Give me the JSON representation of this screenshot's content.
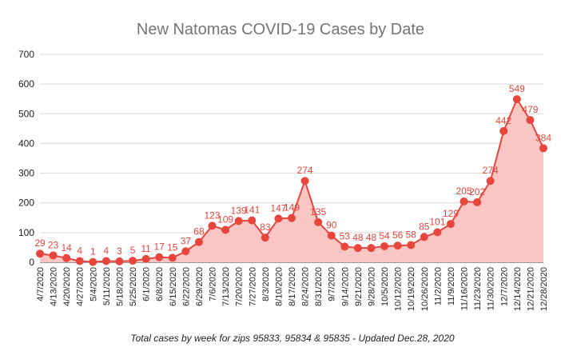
{
  "chart_data": {
    "type": "area",
    "title": "New Natomas COVID-19 Cases by Date",
    "subtitle": "Total cases by week for zips 95833, 95834 & 95835 - Updated Dec.28, 2020",
    "xlabel": "",
    "ylabel": "",
    "ylim": [
      0,
      700
    ],
    "yticks": [
      0,
      100,
      200,
      300,
      400,
      500,
      600,
      700
    ],
    "grid": true,
    "legend": "none",
    "color": "#e8453c",
    "fill_color": "#f9c6c3",
    "categories": [
      "4/7/2020",
      "4/13/2020",
      "4/20/2020",
      "4/27/2020",
      "5/4/2020",
      "5/11/2020",
      "5/18/2020",
      "5/25/2020",
      "6/1/2020",
      "6/8/2020",
      "6/15/2020",
      "6/22/2020",
      "6/29/2020",
      "7/6/2020",
      "7/13/2020",
      "7/20/2020",
      "7/27/2020",
      "8/3/2020",
      "8/10/2020",
      "8/17/2020",
      "8/24/2020",
      "8/31/2020",
      "9/7/2020",
      "9/14/2020",
      "9/21/2020",
      "9/28/2020",
      "10/5/2020",
      "10/12/2020",
      "10/19/2020",
      "10/26/2020",
      "11/2/2020",
      "11/9/2020",
      "11/16/2020",
      "11/23/2020",
      "11/30/2020",
      "12/7/2020",
      "12/14/2020",
      "12/21/2020",
      "12/28/2020"
    ],
    "values": [
      29,
      23,
      14,
      4,
      1,
      4,
      3,
      5,
      11,
      17,
      15,
      37,
      68,
      123,
      109,
      139,
      141,
      83,
      147,
      149,
      274,
      135,
      90,
      53,
      48,
      48,
      54,
      56,
      58,
      85,
      101,
      129,
      205,
      202,
      274,
      442,
      549,
      479,
      384
    ]
  }
}
